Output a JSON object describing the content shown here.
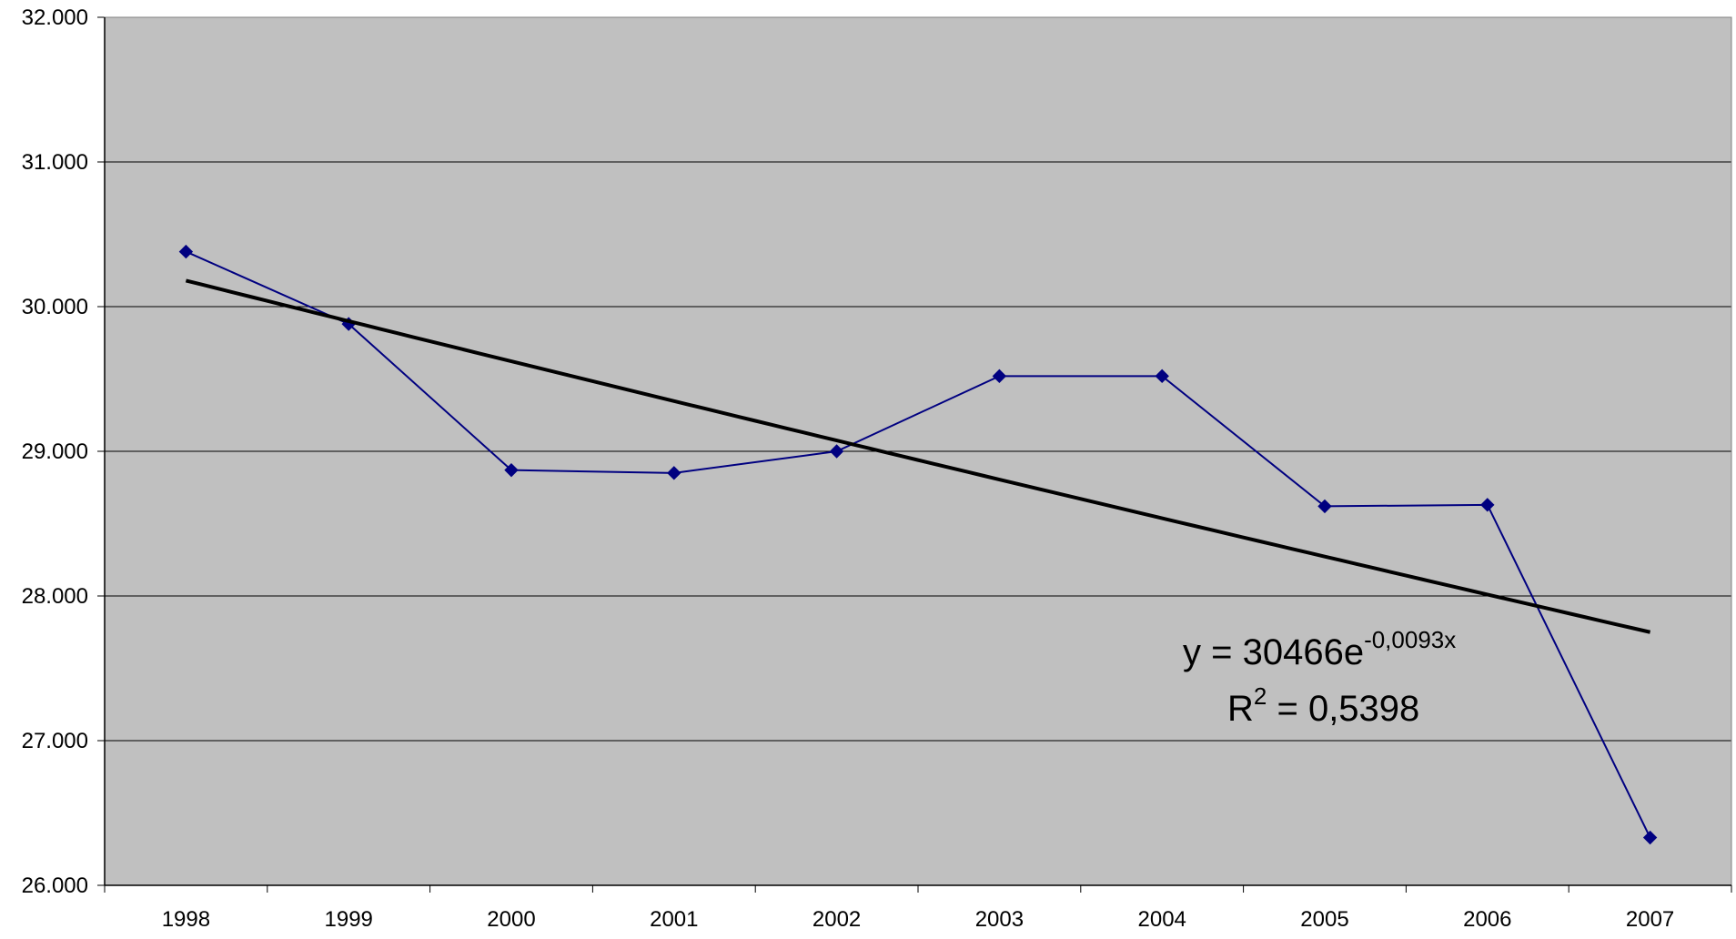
{
  "chart_data": {
    "type": "line",
    "title": "",
    "xlabel": "",
    "ylabel": "",
    "categories": [
      "1998",
      "1999",
      "2000",
      "2001",
      "2002",
      "2003",
      "2004",
      "2005",
      "2006",
      "2007"
    ],
    "series": [
      {
        "values": [
          30380,
          29880,
          28870,
          28850,
          29000,
          29520,
          29520,
          28620,
          28630,
          26330
        ],
        "color": "#000080",
        "marker": "diamond"
      }
    ],
    "trendline": {
      "type": "exponential",
      "color": "#000000",
      "start": 30180,
      "end": 27750,
      "equation": {
        "prefix": "y = 30466e",
        "exponent": "-0,0093x",
        "r2_label": "R",
        "r2_sup": "2",
        "r2_value": " = 0,5398"
      }
    },
    "ylim": [
      26000,
      32000
    ],
    "y_ticks": [
      {
        "value": 26000,
        "label": "26.000"
      },
      {
        "value": 27000,
        "label": "27.000"
      },
      {
        "value": 28000,
        "label": "28.000"
      },
      {
        "value": 29000,
        "label": "29.000"
      },
      {
        "value": 30000,
        "label": "30.000"
      },
      {
        "value": 31000,
        "label": "31.000"
      },
      {
        "value": 32000,
        "label": "32.000"
      }
    ],
    "grid": true,
    "plot_background": "#c0c0c0",
    "legend": "none"
  }
}
